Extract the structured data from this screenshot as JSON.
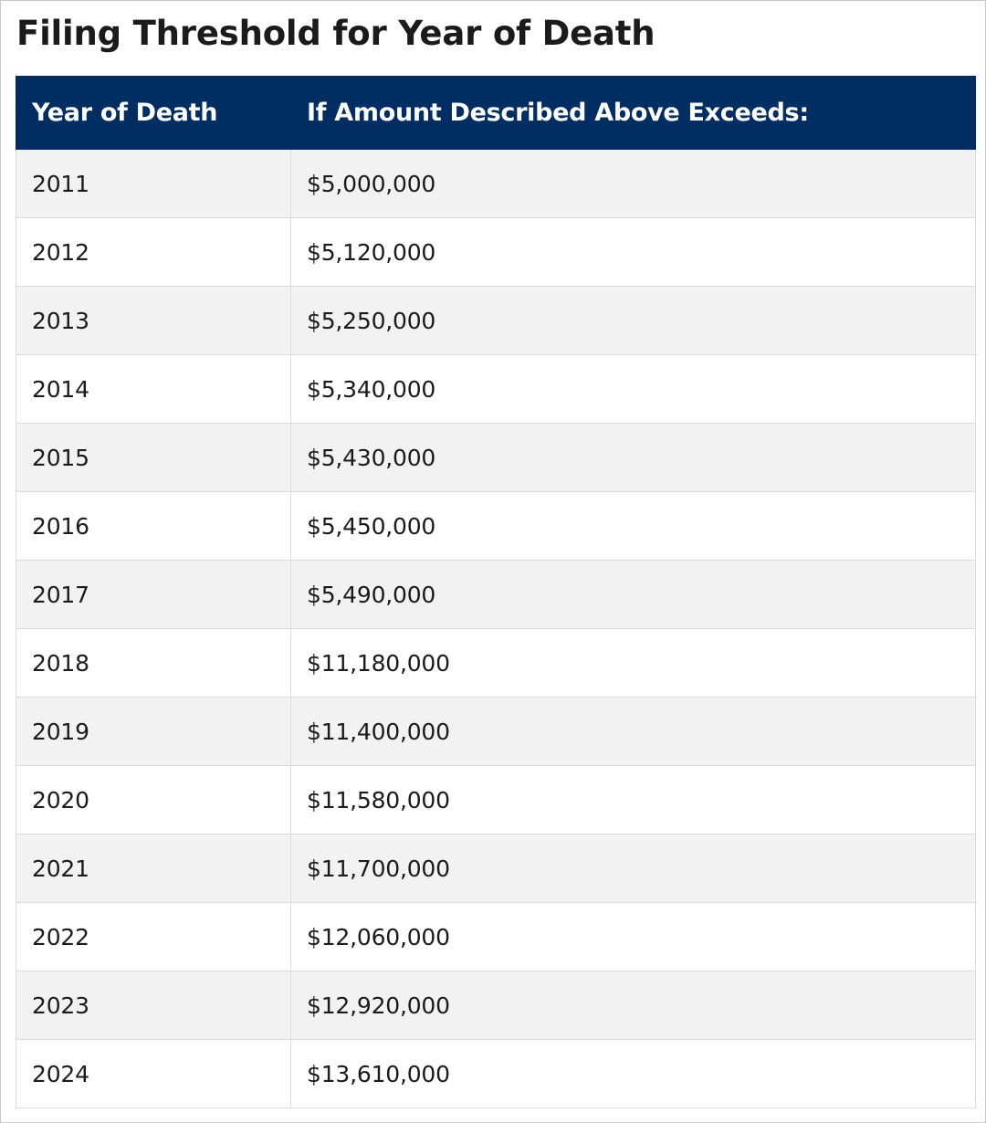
{
  "title": "Filing Threshold for Year of Death",
  "table": {
    "headers": [
      "Year of Death",
      "If Amount Described Above Exceeds:"
    ],
    "rows": [
      [
        "2011",
        "$5,000,000"
      ],
      [
        "2012",
        "$5,120,000"
      ],
      [
        "2013",
        "$5,250,000"
      ],
      [
        "2014",
        "$5,340,000"
      ],
      [
        "2015",
        "$5,430,000"
      ],
      [
        "2016",
        "$5,450,000"
      ],
      [
        "2017",
        "$5,490,000"
      ],
      [
        "2018",
        "$11,180,000"
      ],
      [
        "2019",
        "$11,400,000"
      ],
      [
        "2020",
        "$11,580,000"
      ],
      [
        "2021",
        "$11,700,000"
      ],
      [
        "2022",
        "$12,060,000"
      ],
      [
        "2023",
        "$12,920,000"
      ],
      [
        "2024",
        "$13,610,000"
      ]
    ]
  },
  "colors": {
    "header_background": "#002d62",
    "header_text": "#ffffff",
    "stripe_background": "#f2f2f2",
    "body_text": "#1b1b1b"
  }
}
